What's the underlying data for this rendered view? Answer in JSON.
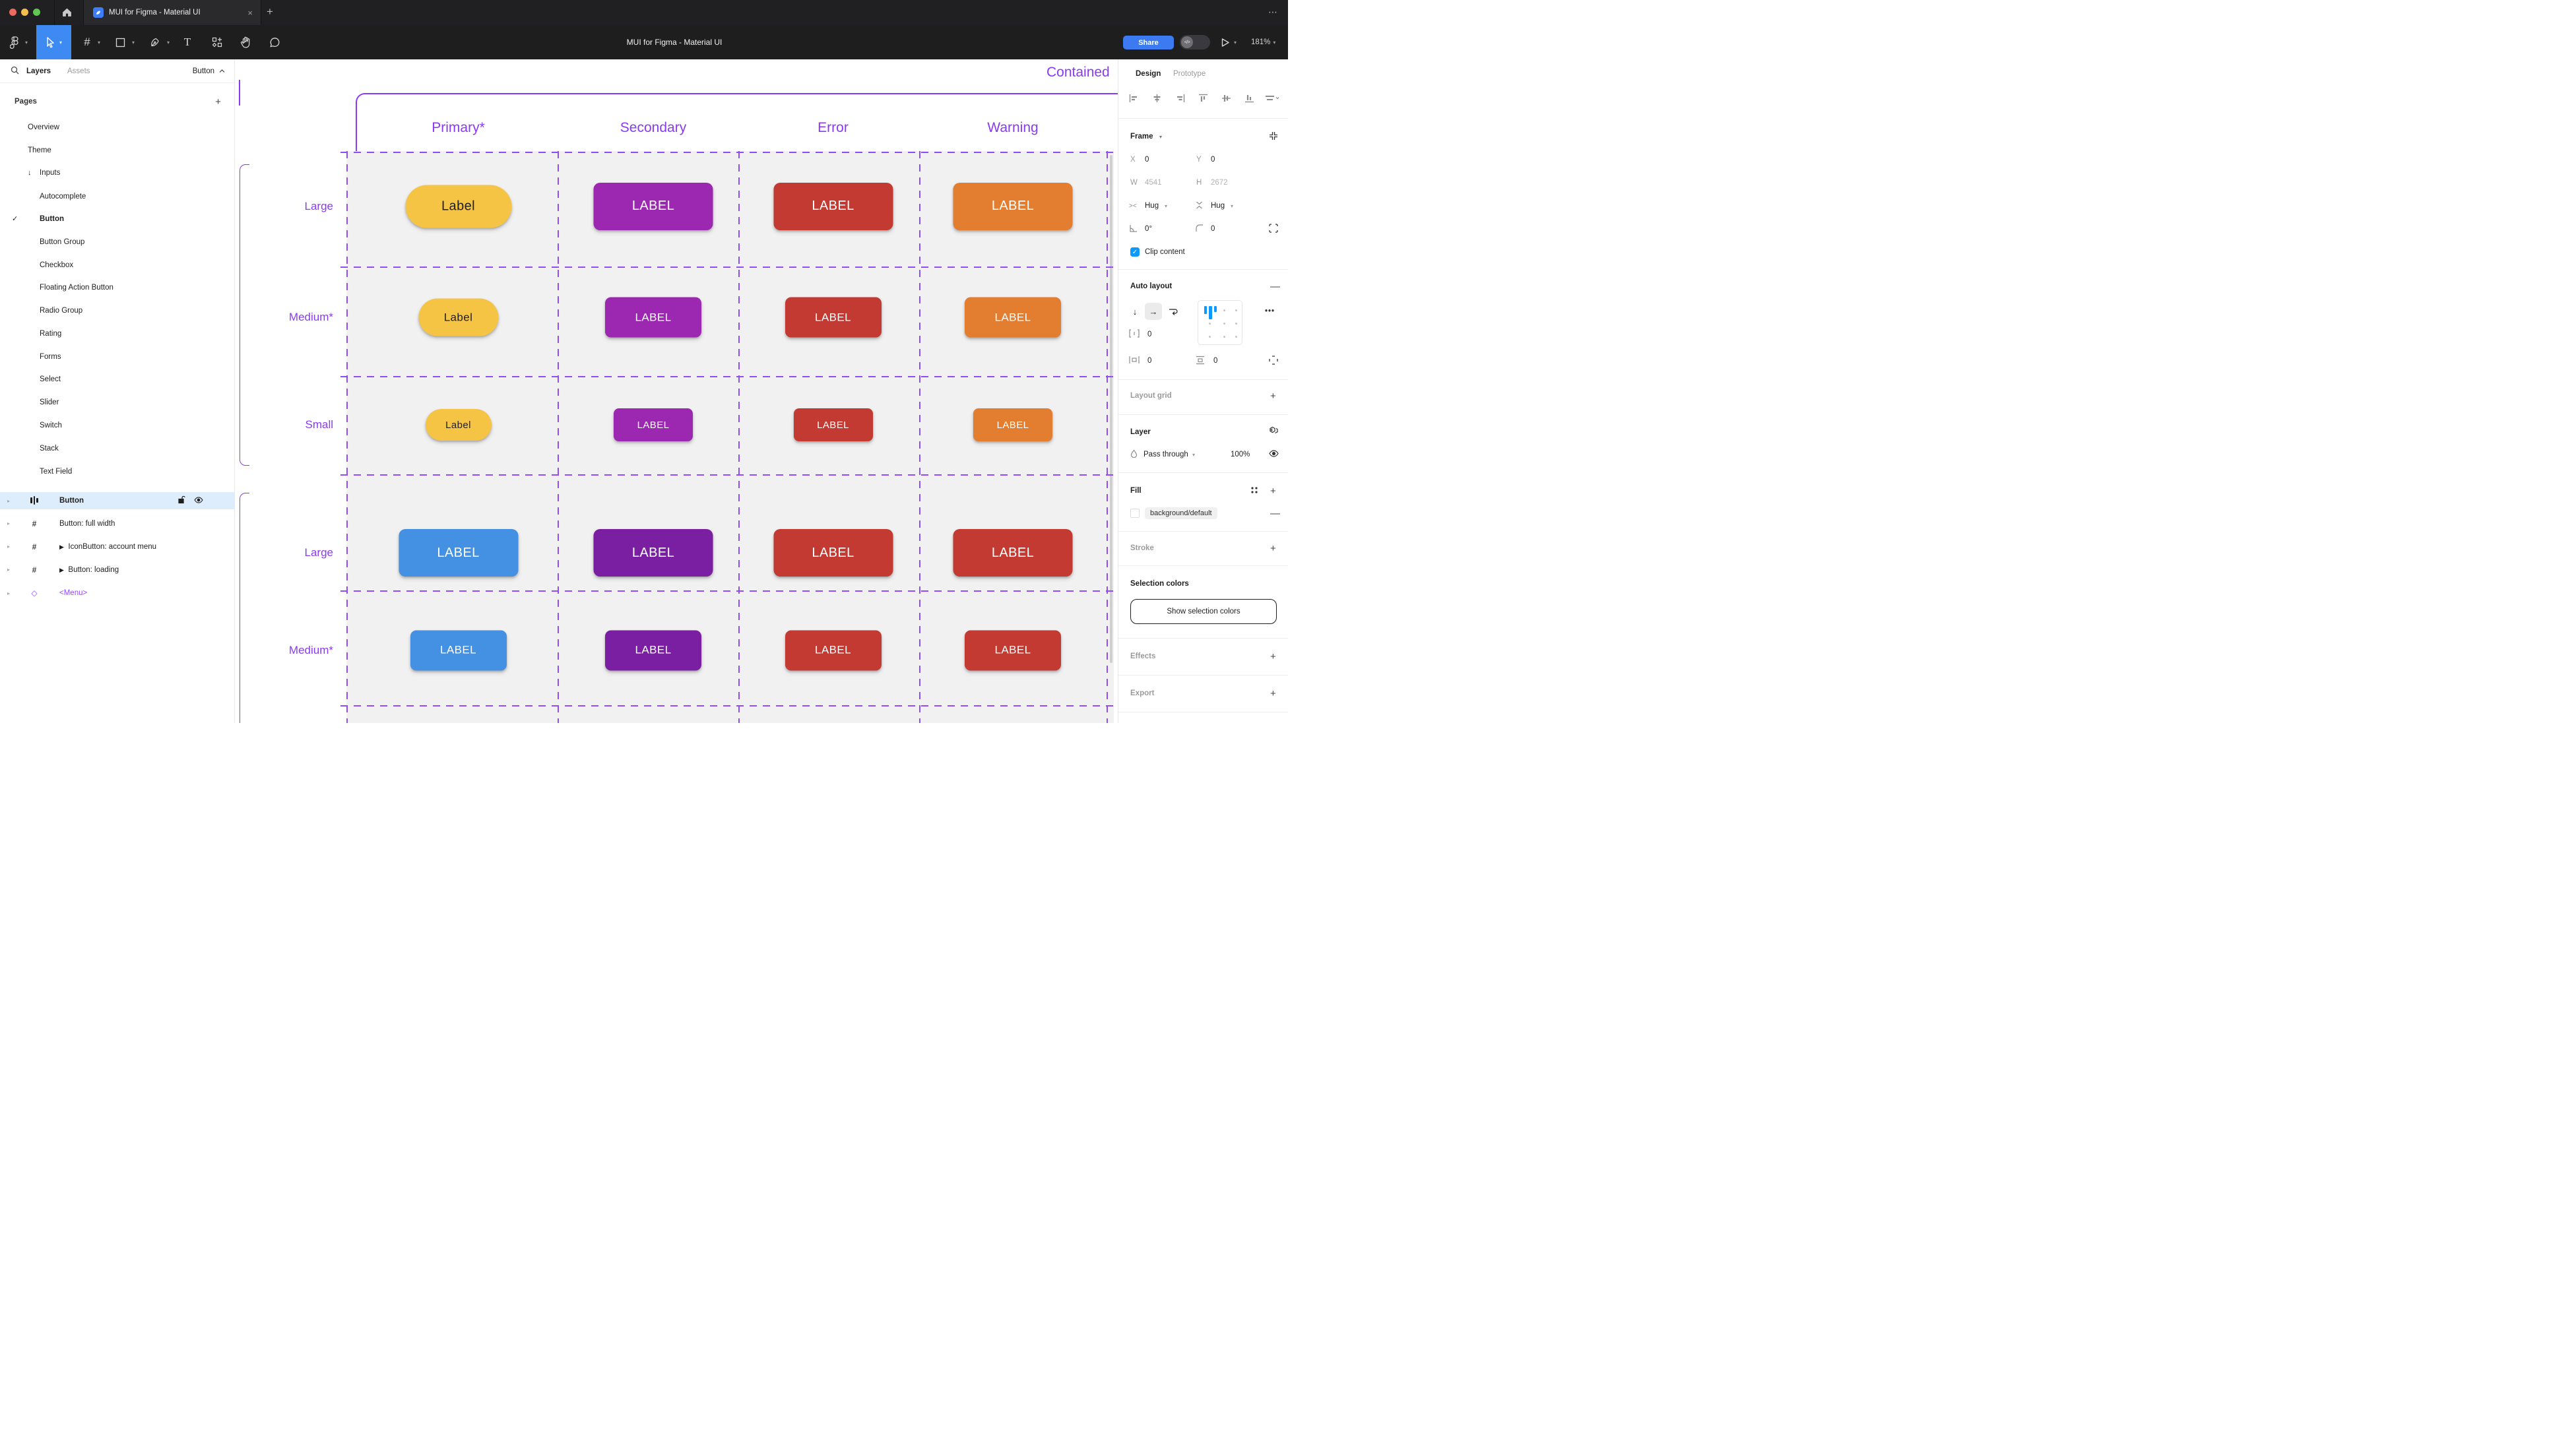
{
  "browser": {
    "tab_title": "MUI for Figma - Material UI",
    "close_label": "×",
    "new_tab_label": "+",
    "overflow_label": "⋯"
  },
  "toolbar": {
    "doc_title": "MUI for Figma - Material UI",
    "share_label": "Share",
    "dev_toggle_label": "</>",
    "zoom_level": "181%"
  },
  "left_panel": {
    "tabs": {
      "layers": "Layers",
      "assets": "Assets"
    },
    "page_indicator": "Button",
    "pages_header": "Pages",
    "add_page_label": "+",
    "pages": [
      {
        "label": "Overview"
      },
      {
        "label": "Theme"
      },
      {
        "label": "Inputs",
        "arrow": true
      },
      {
        "label": "Autocomplete",
        "indent": true
      },
      {
        "label": "Button",
        "indent": true,
        "checked": true,
        "bold": true
      },
      {
        "label": "Button Group",
        "indent": true
      },
      {
        "label": "Checkbox",
        "indent": true
      },
      {
        "label": "Floating Action Button",
        "indent": true
      },
      {
        "label": "Radio Group",
        "indent": true
      },
      {
        "label": "Rating",
        "indent": true
      },
      {
        "label": "Forms",
        "indent": true
      },
      {
        "label": "Select",
        "indent": true
      },
      {
        "label": "Slider",
        "indent": true
      },
      {
        "label": "Switch",
        "indent": true
      },
      {
        "label": "Stack",
        "indent": true
      },
      {
        "label": "Text Field",
        "indent": true
      }
    ],
    "layers": [
      {
        "label": "Button",
        "icon": "autolayout",
        "selected": true,
        "lock": true,
        "eye": true
      },
      {
        "label": "Button: full width",
        "icon": "frame"
      },
      {
        "label": "IconButton: account menu",
        "icon": "frame",
        "play": true
      },
      {
        "label": "Button: loading",
        "icon": "frame",
        "play": true
      },
      {
        "label": "<Menu>",
        "icon": "instance",
        "purple": true
      }
    ]
  },
  "canvas": {
    "frame_title": "Contained",
    "columns": [
      {
        "label": "Primary*"
      },
      {
        "label": "Secondary"
      },
      {
        "label": "Error"
      },
      {
        "label": "Warning"
      }
    ],
    "rows": [
      {
        "label": "Large",
        "size": "lg",
        "buttons": [
          {
            "text": "Label",
            "bg": "#F6C445",
            "fg": "#1F1F1F",
            "pill": true
          },
          {
            "text": "LABEL",
            "bg": "#9C27B0",
            "fg": "#FFFFFF"
          },
          {
            "text": "LABEL",
            "bg": "#C23A31",
            "fg": "#FFFFFF"
          },
          {
            "text": "LABEL",
            "bg": "#E37D2F",
            "fg": "#FFFFFF"
          }
        ]
      },
      {
        "label": "Medium*",
        "size": "md",
        "buttons": [
          {
            "text": "Label",
            "bg": "#F6C445",
            "fg": "#1F1F1F",
            "pill": true
          },
          {
            "text": "LABEL",
            "bg": "#9C27B0",
            "fg": "#FFFFFF"
          },
          {
            "text": "LABEL",
            "bg": "#C23A31",
            "fg": "#FFFFFF"
          },
          {
            "text": "LABEL",
            "bg": "#E37D2F",
            "fg": "#FFFFFF"
          }
        ]
      },
      {
        "label": "Small",
        "size": "sm",
        "buttons": [
          {
            "text": "Label",
            "bg": "#F6C445",
            "fg": "#1F1F1F",
            "pill": true
          },
          {
            "text": "LABEL",
            "bg": "#9C27B0",
            "fg": "#FFFFFF"
          },
          {
            "text": "LABEL",
            "bg": "#C23A31",
            "fg": "#FFFFFF"
          },
          {
            "text": "LABEL",
            "bg": "#E37D2F",
            "fg": "#FFFFFF"
          }
        ]
      },
      {
        "label": "Large",
        "size": "lg",
        "buttons": [
          {
            "text": "LABEL",
            "bg": "#4490E2",
            "fg": "#FFFFFF"
          },
          {
            "text": "LABEL",
            "bg": "#7B1FA2",
            "fg": "#FFFFFF"
          },
          {
            "text": "LABEL",
            "bg": "#C23A31",
            "fg": "#FFFFFF"
          },
          {
            "text": "LABEL",
            "bg": "#C23A31",
            "fg": "#FFFFFF"
          }
        ]
      },
      {
        "label": "Medium*",
        "size": "md",
        "buttons": [
          {
            "text": "LABEL",
            "bg": "#4490E2",
            "fg": "#FFFFFF"
          },
          {
            "text": "LABEL",
            "bg": "#7B1FA2",
            "fg": "#FFFFFF"
          },
          {
            "text": "LABEL",
            "bg": "#C23A31",
            "fg": "#FFFFFF"
          },
          {
            "text": "LABEL",
            "bg": "#C23A31",
            "fg": "#FFFFFF"
          }
        ]
      }
    ]
  },
  "right_panel": {
    "tabs": {
      "design": "Design",
      "prototype": "Prototype"
    },
    "frame": {
      "header": "Frame",
      "x_label": "X",
      "x_value": "0",
      "y_label": "Y",
      "y_value": "0",
      "w_label": "W",
      "w_value": "4541",
      "h_label": "H",
      "h_value": "2672",
      "hug_h": "Hug",
      "hug_v": "Hug",
      "rotation": "0°",
      "radius": "0",
      "clip_label": "Clip content"
    },
    "auto_layout": {
      "header": "Auto layout",
      "gap_value": "0",
      "pad_h_value": "0",
      "pad_v_value": "0"
    },
    "layout_grid_header": "Layout grid",
    "layer": {
      "header": "Layer",
      "blend_mode": "Pass through",
      "opacity": "100%"
    },
    "fill": {
      "header": "Fill",
      "style_name": "background/default"
    },
    "stroke_header": "Stroke",
    "selection_colors": {
      "header": "Selection colors",
      "button_label": "Show selection colors"
    },
    "effects_header": "Effects",
    "export_header": "Export"
  }
}
